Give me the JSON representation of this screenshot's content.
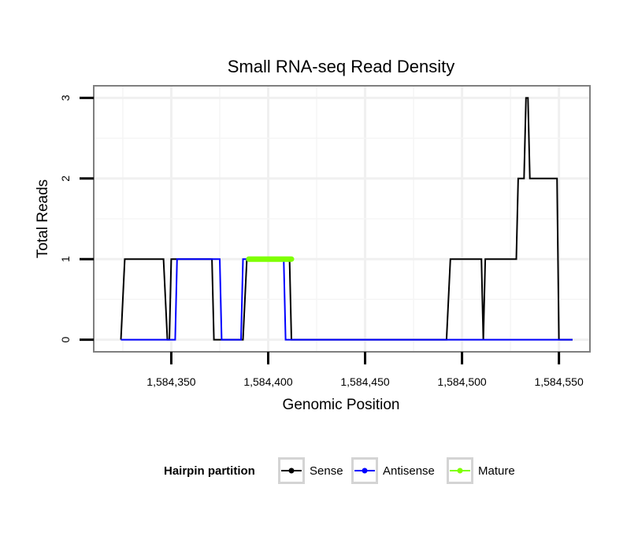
{
  "chart_data": {
    "type": "line",
    "title": "Small RNA-seq Read Density",
    "xlabel": "Genomic Position",
    "ylabel": "Total Reads",
    "xlim": [
      1584310,
      1584566
    ],
    "ylim": [
      -0.15,
      3.15
    ],
    "x_ticks": [
      1584350,
      1584400,
      1584450,
      1584500,
      1584550
    ],
    "x_tick_labels": [
      "1,584,350",
      "1,584,400",
      "1,584,450",
      "1,584,500",
      "1,584,550"
    ],
    "y_ticks": [
      0,
      1,
      2,
      3
    ],
    "y_tick_labels": [
      "0",
      "1",
      "2",
      "3"
    ],
    "grid": true,
    "series": [
      {
        "name": "Sense",
        "color": "#000000",
        "x": [
          1584324,
          1584326,
          1584346,
          1584348,
          1584349,
          1584350,
          1584371,
          1584372,
          1584387,
          1584389,
          1584411,
          1584412,
          1584425,
          1584492,
          1584494,
          1584510,
          1584511,
          1584512,
          1584528,
          1584529,
          1584532,
          1584533,
          1584534,
          1584535,
          1584549,
          1584550,
          1584557
        ],
        "y": [
          0,
          1,
          1,
          0,
          0,
          1,
          1,
          0,
          0,
          1,
          1,
          0,
          0,
          0,
          1,
          1,
          0,
          1,
          1,
          2,
          2,
          3,
          3,
          2,
          2,
          0,
          0
        ]
      },
      {
        "name": "Antisense",
        "color": "#0000ff",
        "x": [
          1584324,
          1584352,
          1584353,
          1584375,
          1584376,
          1584386,
          1584387,
          1584408,
          1584409,
          1584425,
          1584557
        ],
        "y": [
          0,
          0,
          1,
          1,
          0,
          0,
          1,
          1,
          0,
          0,
          0
        ]
      },
      {
        "name": "Mature",
        "color": "#7fff00",
        "x": [
          1584390,
          1584412
        ],
        "y": [
          1,
          1
        ]
      }
    ],
    "legend": {
      "title": "Hairpin partition",
      "position": "bottom",
      "entries": [
        "Sense",
        "Antisense",
        "Mature"
      ]
    }
  }
}
